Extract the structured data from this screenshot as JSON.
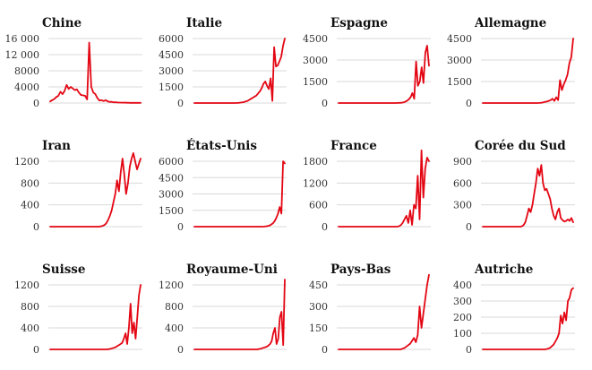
{
  "series_color": "#e30613",
  "grid_color": "#d9d9d9",
  "chart_data": [
    {
      "type": "line",
      "title": "Chine",
      "yticks": [
        "0",
        "4000",
        "8000",
        "12 000",
        "16 000"
      ],
      "yvals": [
        0,
        4000,
        8000,
        12000,
        16000
      ],
      "ylim": [
        0,
        16000
      ],
      "series": [
        {
          "values": [
            400,
            700,
            1000,
            1500,
            1800,
            2800,
            2200,
            3000,
            4500,
            3500,
            4000,
            3600,
            3200,
            3400,
            2600,
            2000,
            1900,
            1800,
            900,
            15000,
            4000,
            2600,
            2200,
            1200,
            600,
            700,
            500,
            700,
            400,
            300,
            300,
            150,
            200,
            120,
            100,
            80,
            100,
            60,
            60,
            50,
            50,
            40,
            40,
            40,
            40
          ]
        }
      ]
    },
    {
      "type": "line",
      "title": "Italie",
      "yticks": [
        "0",
        "1500",
        "3000",
        "4500",
        "6000"
      ],
      "yvals": [
        0,
        1500,
        3000,
        4500,
        6000
      ],
      "ylim": [
        0,
        6000
      ],
      "series": [
        {
          "values": [
            0,
            0,
            0,
            0,
            0,
            0,
            0,
            0,
            0,
            0,
            0,
            0,
            0,
            0,
            0,
            0,
            0,
            0,
            0,
            0,
            0,
            0,
            0,
            0,
            5,
            20,
            40,
            60,
            90,
            150,
            200,
            300,
            400,
            500,
            600,
            700,
            900,
            1100,
            1400,
            1800,
            2000,
            1600,
            1300,
            2300,
            200,
            5200,
            3400,
            3500,
            3900,
            4300,
            5300,
            6000
          ]
        }
      ]
    },
    {
      "type": "line",
      "title": "Espagne",
      "yticks": [
        "0",
        "1500",
        "3000",
        "4500"
      ],
      "yvals": [
        0,
        1500,
        3000,
        4500
      ],
      "ylim": [
        0,
        4500
      ],
      "series": [
        {
          "values": [
            0,
            0,
            0,
            0,
            0,
            0,
            0,
            0,
            0,
            0,
            0,
            0,
            0,
            0,
            0,
            0,
            0,
            0,
            0,
            0,
            0,
            0,
            0,
            0,
            0,
            0,
            0,
            0,
            0,
            0,
            0,
            0,
            5,
            10,
            20,
            40,
            80,
            150,
            250,
            400,
            700,
            300,
            2900,
            1200,
            1500,
            2500,
            1400,
            3500,
            4000,
            2600
          ]
        }
      ]
    },
    {
      "type": "line",
      "title": "Allemagne",
      "yticks": [
        "0",
        "1500",
        "3000",
        "4500"
      ],
      "yvals": [
        0,
        1500,
        3000,
        4500
      ],
      "ylim": [
        0,
        4500
      ],
      "series": [
        {
          "values": [
            0,
            0,
            0,
            0,
            0,
            0,
            0,
            0,
            0,
            0,
            0,
            0,
            0,
            0,
            0,
            0,
            0,
            0,
            0,
            0,
            0,
            0,
            0,
            0,
            0,
            0,
            0,
            0,
            0,
            0,
            5,
            20,
            40,
            80,
            100,
            150,
            200,
            300,
            150,
            400,
            200,
            1600,
            900,
            1300,
            1600,
            2000,
            2800,
            3200,
            4500
          ]
        }
      ]
    },
    {
      "type": "line",
      "title": "Iran",
      "yticks": [
        "0",
        "400",
        "800",
        "1200"
      ],
      "yvals": [
        0,
        400,
        800,
        1200
      ],
      "ylim": [
        0,
        1400
      ],
      "series": [
        {
          "values": [
            0,
            0,
            0,
            0,
            0,
            0,
            0,
            0,
            0,
            0,
            0,
            0,
            0,
            0,
            0,
            0,
            0,
            0,
            0,
            0,
            0,
            0,
            0,
            0,
            0,
            0,
            0,
            0,
            5,
            15,
            30,
            60,
            120,
            200,
            300,
            450,
            600,
            850,
            650,
            1000,
            1250,
            950,
            600,
            800,
            1100,
            1250,
            1350,
            1200,
            1050,
            1150,
            1250
          ]
        }
      ]
    },
    {
      "type": "line",
      "title": "États-Unis",
      "yticks": [
        "0",
        "1500",
        "3000",
        "4500",
        "6000"
      ],
      "yvals": [
        0,
        1500,
        3000,
        4500,
        6000
      ],
      "ylim": [
        0,
        6000
      ],
      "series": [
        {
          "values": [
            0,
            0,
            0,
            0,
            0,
            0,
            0,
            0,
            0,
            0,
            0,
            0,
            0,
            0,
            0,
            0,
            0,
            0,
            0,
            0,
            0,
            0,
            0,
            0,
            0,
            0,
            0,
            0,
            0,
            0,
            0,
            0,
            0,
            0,
            0,
            0,
            0,
            0,
            0,
            0,
            0,
            10,
            30,
            60,
            100,
            200,
            300,
            500,
            800,
            1200,
            1800,
            1200,
            6000,
            5800
          ]
        }
      ]
    },
    {
      "type": "line",
      "title": "France",
      "yticks": [
        "0",
        "600",
        "1200",
        "1800"
      ],
      "yvals": [
        0,
        600,
        1200,
        1800
      ],
      "ylim": [
        0,
        2100
      ],
      "series": [
        {
          "values": [
            0,
            0,
            0,
            0,
            0,
            0,
            0,
            0,
            0,
            0,
            0,
            0,
            0,
            0,
            0,
            0,
            0,
            0,
            0,
            0,
            0,
            0,
            0,
            0,
            0,
            0,
            0,
            0,
            0,
            0,
            0,
            0,
            10,
            40,
            100,
            200,
            300,
            100,
            450,
            50,
            600,
            500,
            1400,
            200,
            2100,
            800,
            1600,
            1900,
            1800
          ]
        }
      ]
    },
    {
      "type": "line",
      "title": "Corée du Sud",
      "yticks": [
        "0",
        "300",
        "600",
        "900"
      ],
      "yvals": [
        0,
        300,
        600,
        900
      ],
      "ylim": [
        0,
        900
      ],
      "series": [
        {
          "values": [
            0,
            0,
            0,
            0,
            0,
            0,
            0,
            0,
            0,
            0,
            0,
            0,
            0,
            0,
            0,
            0,
            0,
            0,
            0,
            0,
            0,
            0,
            5,
            20,
            60,
            150,
            250,
            200,
            300,
            450,
            600,
            800,
            700,
            850,
            600,
            500,
            520,
            450,
            380,
            250,
            150,
            100,
            200,
            250,
            120,
            90,
            70,
            80,
            100,
            80,
            120,
            60
          ]
        }
      ]
    },
    {
      "type": "line",
      "title": "Suisse",
      "yticks": [
        "0",
        "400",
        "800",
        "1200"
      ],
      "yvals": [
        0,
        400,
        800,
        1200
      ],
      "ylim": [
        0,
        1300
      ],
      "series": [
        {
          "values": [
            0,
            0,
            0,
            0,
            0,
            0,
            0,
            0,
            0,
            0,
            0,
            0,
            0,
            0,
            0,
            0,
            0,
            0,
            0,
            0,
            0,
            0,
            0,
            0,
            0,
            0,
            0,
            0,
            0,
            0,
            0,
            0,
            0,
            0,
            0,
            5,
            10,
            20,
            30,
            40,
            60,
            80,
            100,
            120,
            200,
            300,
            100,
            400,
            850,
            300,
            500,
            200,
            600,
            1000,
            1200
          ]
        }
      ]
    },
    {
      "type": "line",
      "title": "Royaume-Uni",
      "yticks": [
        "0",
        "400",
        "800",
        "1200"
      ],
      "yvals": [
        0,
        400,
        800,
        1200
      ],
      "ylim": [
        0,
        1300
      ],
      "series": [
        {
          "values": [
            0,
            0,
            0,
            0,
            0,
            0,
            0,
            0,
            0,
            0,
            0,
            0,
            0,
            0,
            0,
            0,
            0,
            0,
            0,
            0,
            0,
            0,
            0,
            0,
            0,
            0,
            0,
            0,
            0,
            0,
            0,
            0,
            0,
            0,
            0,
            0,
            0,
            0,
            0,
            5,
            10,
            20,
            30,
            40,
            50,
            70,
            100,
            150,
            300,
            400,
            100,
            200,
            600,
            700,
            80,
            1300
          ]
        }
      ]
    },
    {
      "type": "line",
      "title": "Pays-Bas",
      "yticks": [
        "0",
        "150",
        "300",
        "450"
      ],
      "yvals": [
        0,
        150,
        300,
        450
      ],
      "ylim": [
        0,
        520
      ],
      "series": [
        {
          "values": [
            0,
            0,
            0,
            0,
            0,
            0,
            0,
            0,
            0,
            0,
            0,
            0,
            0,
            0,
            0,
            0,
            0,
            0,
            0,
            0,
            0,
            0,
            0,
            0,
            0,
            0,
            0,
            0,
            0,
            0,
            0,
            0,
            0,
            0,
            5,
            10,
            20,
            30,
            40,
            60,
            80,
            50,
            100,
            300,
            150,
            250,
            350,
            450,
            520
          ]
        }
      ]
    },
    {
      "type": "line",
      "title": "Autriche",
      "yticks": [
        "0",
        "100",
        "200",
        "300",
        "400"
      ],
      "yvals": [
        0,
        100,
        200,
        300,
        400
      ],
      "ylim": [
        0,
        400
      ],
      "series": [
        {
          "values": [
            0,
            0,
            0,
            0,
            0,
            0,
            0,
            0,
            0,
            0,
            0,
            0,
            0,
            0,
            0,
            0,
            0,
            0,
            0,
            0,
            0,
            0,
            0,
            0,
            0,
            0,
            0,
            0,
            0,
            0,
            0,
            0,
            0,
            0,
            0,
            0,
            2,
            5,
            10,
            20,
            30,
            50,
            70,
            100,
            210,
            160,
            230,
            180,
            300,
            320,
            370,
            380
          ]
        }
      ]
    }
  ]
}
